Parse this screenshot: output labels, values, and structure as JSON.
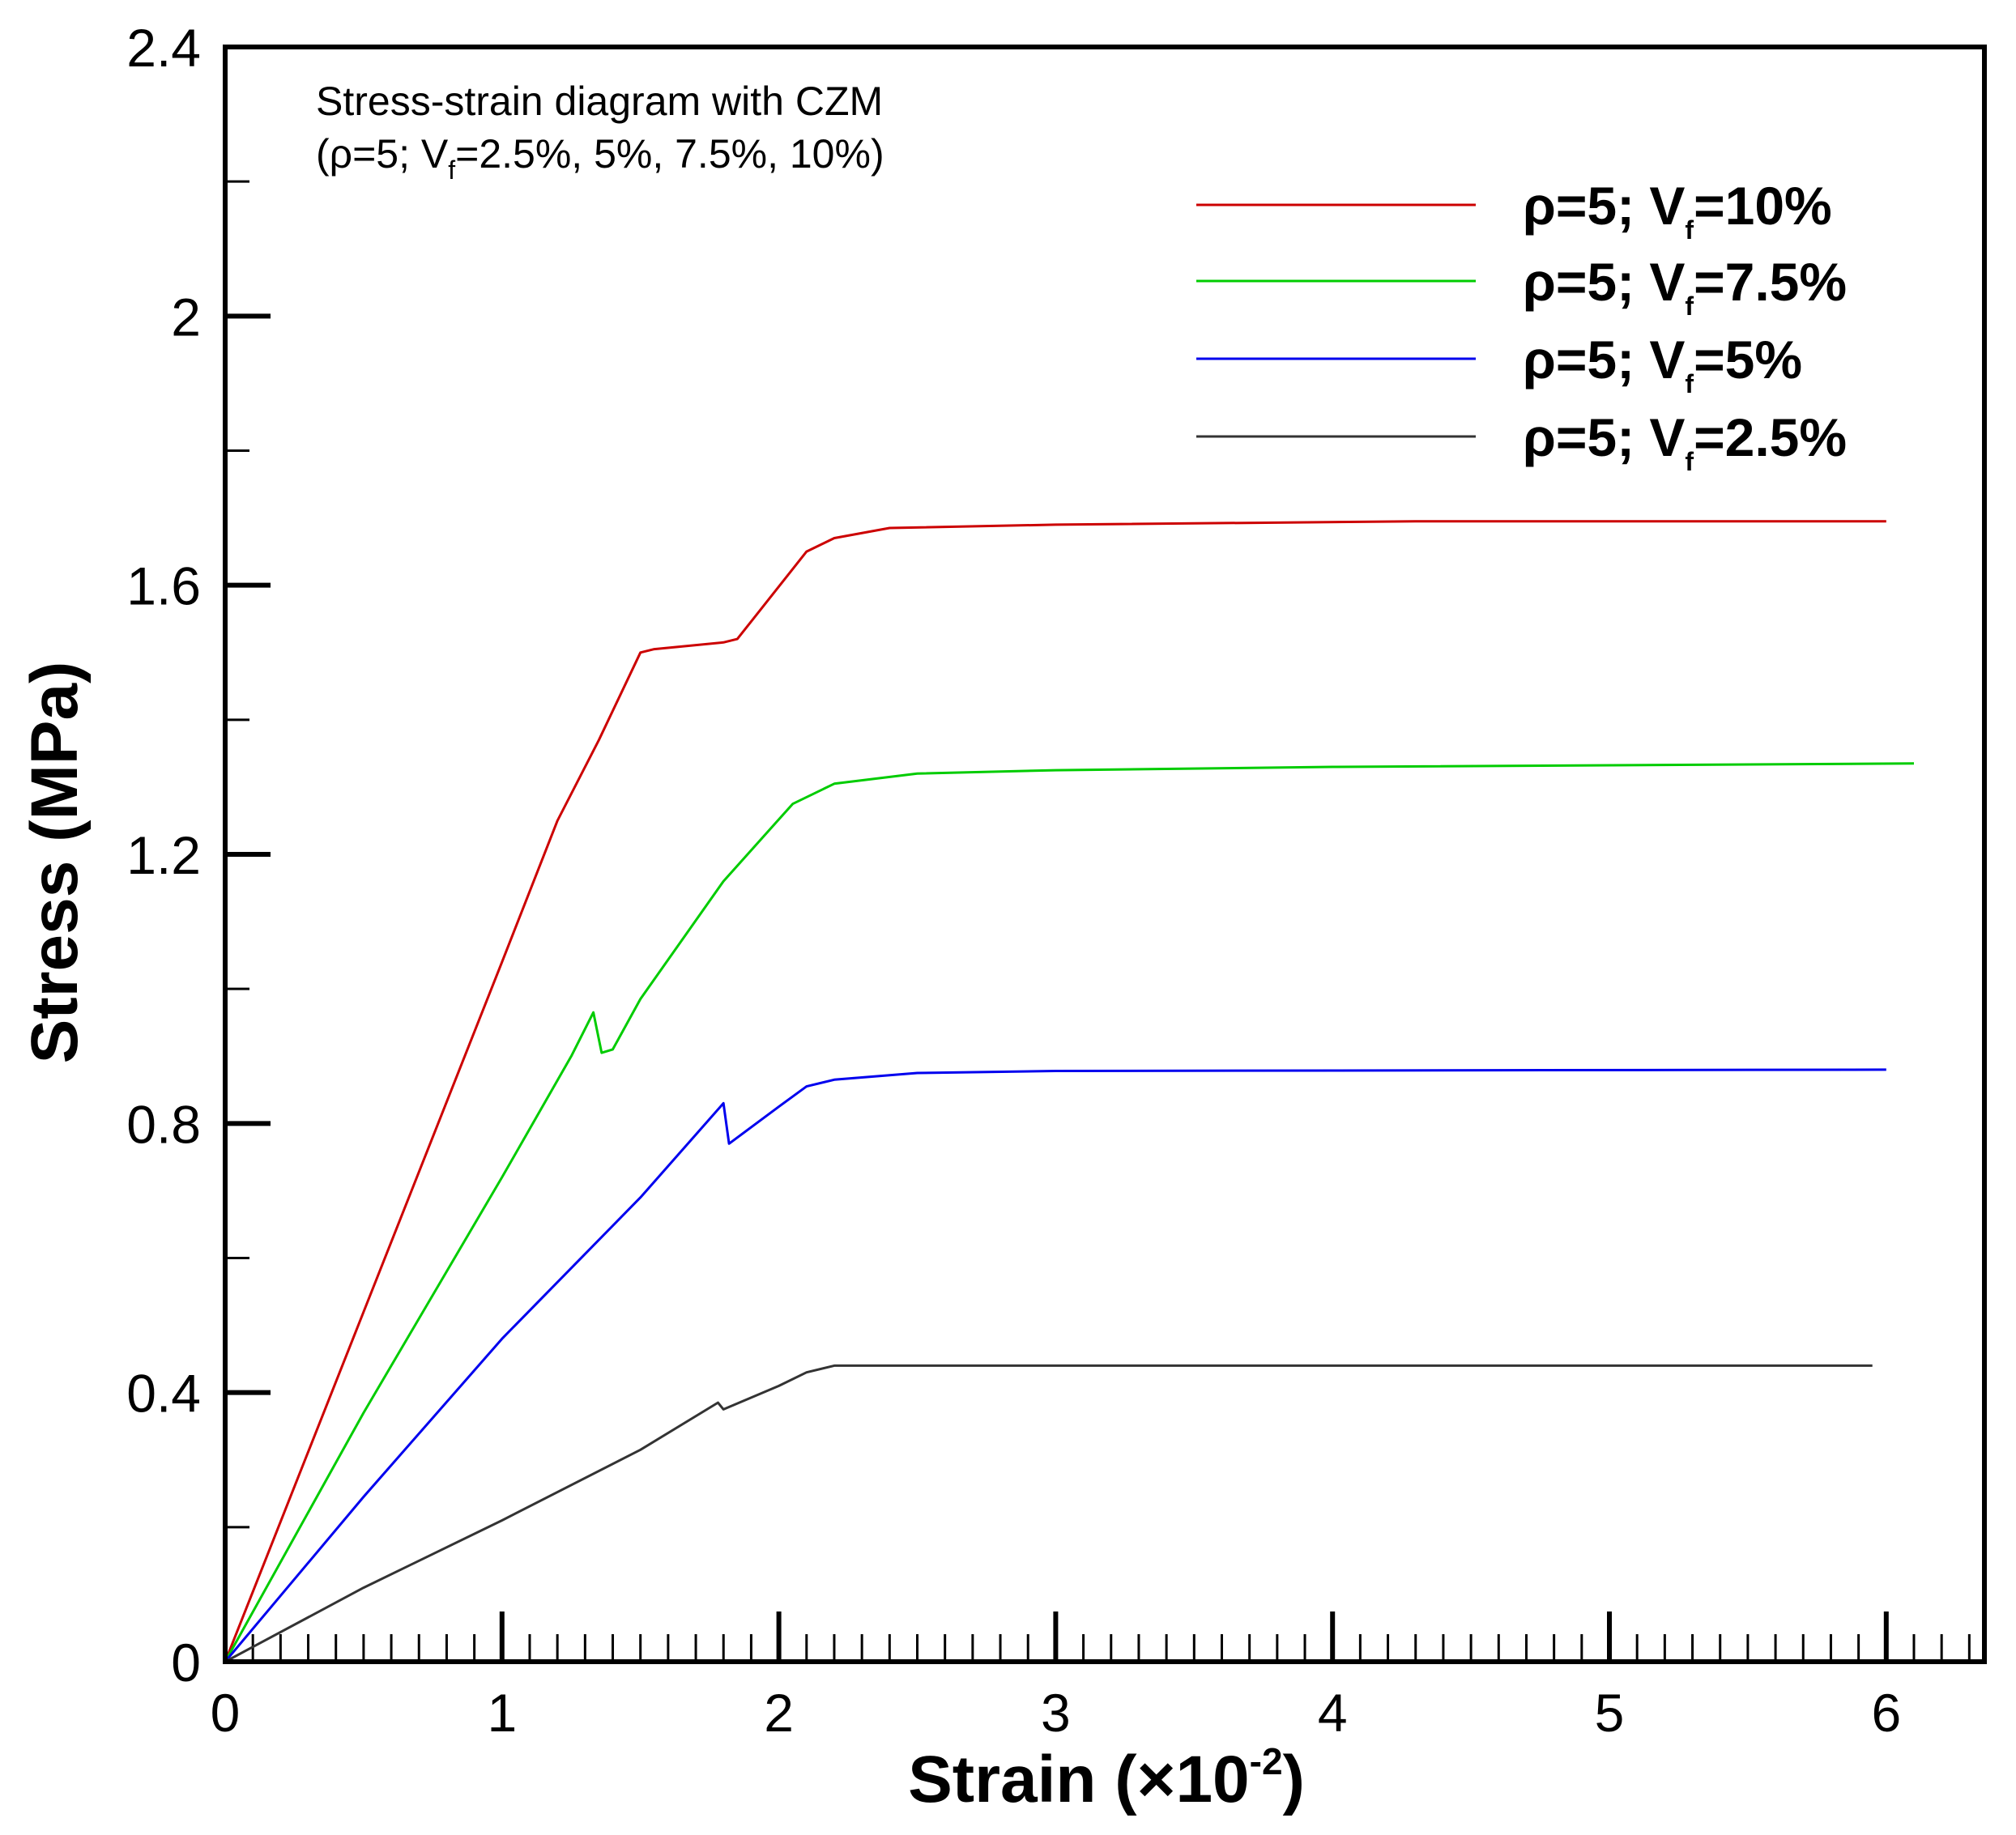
{
  "chart_data": {
    "type": "line",
    "annotation": {
      "line1": "Stress-strain diagram with CZM",
      "line2_open": "(ρ=5; V",
      "line2_sub": "f",
      "line2_rest": "=2.5%, 5%, 7.5%, 10%)"
    },
    "xlabel": {
      "text": "Strain (×10",
      "sup": "-2",
      "close": ")"
    },
    "ylabel": "Stress (MPa)",
    "xlim": [
      0,
      6.35
    ],
    "ylim": [
      0,
      2.4
    ],
    "x_ticks": [
      {
        "value": 0,
        "label": "0"
      },
      {
        "value": 1,
        "label": "1"
      },
      {
        "value": 2,
        "label": "2"
      },
      {
        "value": 3,
        "label": "3"
      },
      {
        "value": 4,
        "label": "4"
      },
      {
        "value": 5,
        "label": "5"
      },
      {
        "value": 6,
        "label": "6"
      }
    ],
    "y_ticks": [
      {
        "value": 0,
        "label": "0"
      },
      {
        "value": 0.4,
        "label": "0.4"
      },
      {
        "value": 0.8,
        "label": "0.8"
      },
      {
        "value": 1.2,
        "label": "1.2"
      },
      {
        "value": 1.6,
        "label": "1.6"
      },
      {
        "value": 2.0,
        "label": "2"
      },
      {
        "value": 2.4,
        "label": "2.4"
      }
    ],
    "x_minor_step": 0.1,
    "y_minor_step": 0.2,
    "legend_position": "top-right",
    "series": [
      {
        "name": "ρ=5; V_f=10%",
        "label_pre": "ρ=5; V",
        "label_sub": "f",
        "label_post": "=10%",
        "color": "#cc0000",
        "x": [
          0,
          0.5,
          1.0,
          1.2,
          1.35,
          1.5,
          1.55,
          1.8,
          1.85,
          2.1,
          2.2,
          2.4,
          3.0,
          4.3,
          6.0
        ],
        "y": [
          0,
          0.52,
          1.04,
          1.25,
          1.37,
          1.5,
          1.505,
          1.515,
          1.52,
          1.65,
          1.67,
          1.685,
          1.69,
          1.695,
          1.695
        ]
      },
      {
        "name": "ρ=5; V_f=7.5%",
        "label_pre": "ρ=5; V",
        "label_sub": "f",
        "label_post": "=7.5%",
        "color": "#00cc00",
        "x": [
          0,
          0.5,
          1.0,
          1.25,
          1.33,
          1.36,
          1.4,
          1.5,
          1.8,
          2.05,
          2.2,
          2.5,
          3.0,
          4.0,
          6.1
        ],
        "y": [
          0,
          0.37,
          0.72,
          0.9,
          0.965,
          0.905,
          0.91,
          0.985,
          1.16,
          1.275,
          1.305,
          1.32,
          1.325,
          1.33,
          1.335
        ]
      },
      {
        "name": "ρ=5; V_f=5%",
        "label_pre": "ρ=5; V",
        "label_sub": "f",
        "label_post": "=5%",
        "color": "#0000ee",
        "x": [
          0,
          0.5,
          1.0,
          1.5,
          1.8,
          1.82,
          2.0,
          2.1,
          2.2,
          2.5,
          3.0,
          6.0
        ],
        "y": [
          0,
          0.245,
          0.48,
          0.69,
          0.83,
          0.77,
          0.825,
          0.855,
          0.865,
          0.875,
          0.878,
          0.88
        ]
      },
      {
        "name": "ρ=5; V_f=2.5%",
        "label_pre": "ρ=5; V",
        "label_sub": "f",
        "label_post": "=2.5%",
        "color": "#333333",
        "x": [
          0,
          0.5,
          1.0,
          1.5,
          1.78,
          1.8,
          2.0,
          2.1,
          2.2,
          3.0,
          5.0,
          5.95
        ],
        "y": [
          0,
          0.11,
          0.21,
          0.315,
          0.385,
          0.375,
          0.41,
          0.43,
          0.44,
          0.44,
          0.44,
          0.44
        ]
      }
    ]
  }
}
